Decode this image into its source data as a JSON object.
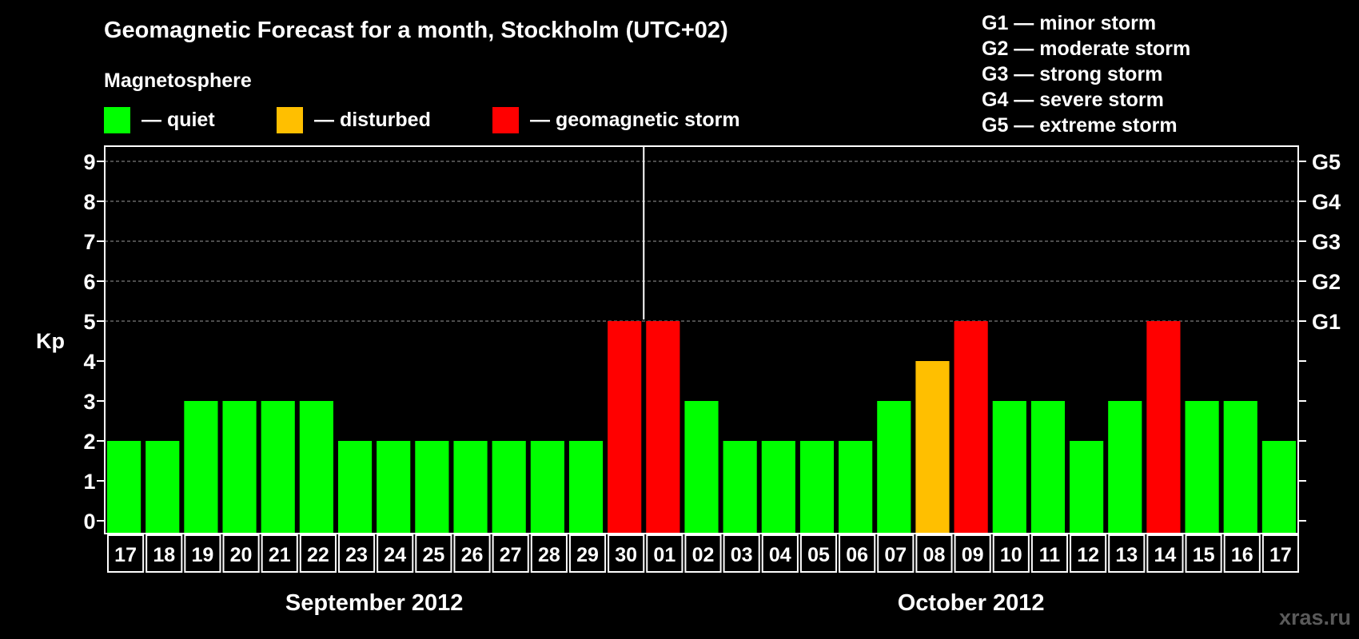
{
  "chart_data": {
    "type": "bar",
    "title": "Geomagnetic Forecast for a month, Stockholm (UTC+02)",
    "ylabel": "Kp",
    "ylim": [
      0,
      9
    ],
    "y_ticks": [
      "0",
      "1",
      "2",
      "3",
      "4",
      "5",
      "6",
      "7",
      "8",
      "9"
    ],
    "right_ticks": [
      {
        "value": 5,
        "label": "G1"
      },
      {
        "value": 6,
        "label": "G2"
      },
      {
        "value": 7,
        "label": "G3"
      },
      {
        "value": 8,
        "label": "G4"
      },
      {
        "value": 9,
        "label": "G5"
      }
    ],
    "legend": {
      "heading": "Magnetosphere",
      "items": [
        {
          "label": "— quiet",
          "color": "#00ff00"
        },
        {
          "label": "— disturbed",
          "color": "#ffbf00"
        },
        {
          "label": "— geomagnetic storm",
          "color": "#ff0000"
        }
      ]
    },
    "scale_legend": [
      "G1 — minor storm",
      "G2 — moderate storm",
      "G3 — strong storm",
      "G4 — severe storm",
      "G5 — extreme storm"
    ],
    "categories": [
      "17",
      "18",
      "19",
      "20",
      "21",
      "22",
      "23",
      "24",
      "25",
      "26",
      "27",
      "28",
      "29",
      "30",
      "01",
      "02",
      "03",
      "04",
      "05",
      "06",
      "07",
      "08",
      "09",
      "10",
      "11",
      "12",
      "13",
      "14",
      "15",
      "16",
      "17"
    ],
    "values": [
      2,
      2,
      3,
      3,
      3,
      3,
      2,
      2,
      2,
      2,
      2,
      2,
      2,
      5,
      5,
      3,
      2,
      2,
      2,
      2,
      3,
      4,
      5,
      3,
      3,
      2,
      3,
      5,
      3,
      3,
      2
    ],
    "status_colors": {
      "quiet": "#00ff00",
      "disturbed": "#ffbf00",
      "storm": "#ff0000"
    },
    "months": [
      {
        "label": "September 2012",
        "start": 0,
        "end": 13
      },
      {
        "label": "October 2012",
        "start": 14,
        "end": 30
      }
    ],
    "grid": true,
    "watermark": "xras.ru"
  }
}
